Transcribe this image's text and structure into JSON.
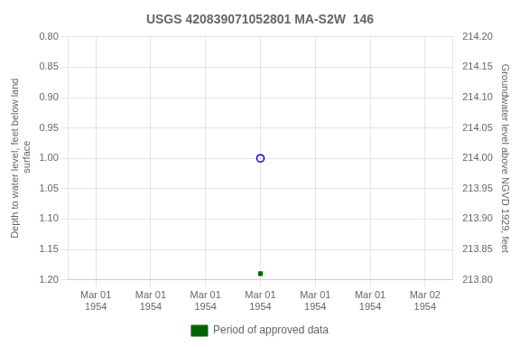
{
  "chart_data": {
    "type": "scatter",
    "title": "USGS 420839071052801 MA-S2W  146",
    "ylabel": "Depth to water level, feet below land\n surface",
    "y2label": "Groundwater level above NGVD 1929, feet",
    "xlim": [
      -0.5,
      6.5
    ],
    "xticks": [
      {
        "value": 0,
        "label": "Mar 01\n1954"
      },
      {
        "value": 1,
        "label": "Mar 01\n1954"
      },
      {
        "value": 2,
        "label": "Mar 01\n1954"
      },
      {
        "value": 3,
        "label": "Mar 01\n1954"
      },
      {
        "value": 4,
        "label": "Mar 01\n1954"
      },
      {
        "value": 5,
        "label": "Mar 01\n1954"
      },
      {
        "value": 6,
        "label": "Mar 02\n1954"
      }
    ],
    "ylim": [
      1.2,
      0.8
    ],
    "yticks": [
      {
        "value": 0.8,
        "label": "0.80"
      },
      {
        "value": 0.85,
        "label": "0.85"
      },
      {
        "value": 0.9,
        "label": "0.90"
      },
      {
        "value": 0.95,
        "label": "0.95"
      },
      {
        "value": 1.0,
        "label": "1.00"
      },
      {
        "value": 1.05,
        "label": "1.05"
      },
      {
        "value": 1.1,
        "label": "1.10"
      },
      {
        "value": 1.15,
        "label": "1.15"
      },
      {
        "value": 1.2,
        "label": "1.20"
      }
    ],
    "y2lim": [
      213.8,
      214.2
    ],
    "y2ticks": [
      {
        "value": 213.8,
        "label": "213.80"
      },
      {
        "value": 213.85,
        "label": "213.85"
      },
      {
        "value": 213.9,
        "label": "213.90"
      },
      {
        "value": 213.95,
        "label": "213.95"
      },
      {
        "value": 214.0,
        "label": "214.00"
      },
      {
        "value": 214.05,
        "label": "214.05"
      },
      {
        "value": 214.1,
        "label": "214.10"
      },
      {
        "value": 214.15,
        "label": "214.15"
      },
      {
        "value": 214.2,
        "label": "214.20"
      }
    ],
    "grid": true,
    "legend": "bottom",
    "series": [
      {
        "color": "#0000cc",
        "marker": "open_circle",
        "x": [
          3.0
        ],
        "values": [
          1.0
        ]
      },
      {
        "name": "Period of approved data",
        "color": "#006400",
        "marker": "filled_square",
        "x": [
          3.0
        ],
        "values": [
          1.19
        ]
      }
    ]
  }
}
